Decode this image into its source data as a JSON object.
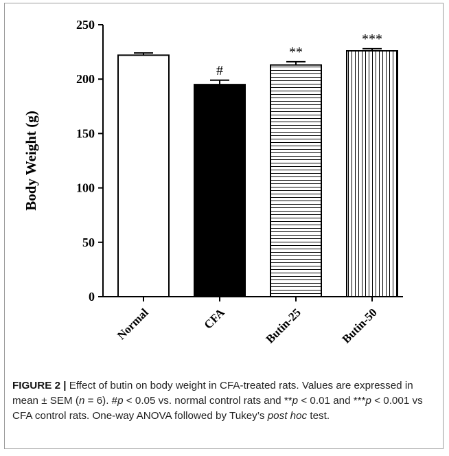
{
  "chart_data": {
    "type": "bar",
    "categories": [
      "Normal",
      "CFA",
      "Butin-25",
      "Butin-50"
    ],
    "values": [
      222,
      195,
      213,
      226
    ],
    "errors": [
      2,
      4,
      3,
      2
    ],
    "significance": [
      "",
      "#",
      "**",
      "***"
    ],
    "patterns": [
      "none",
      "solid",
      "horizontal-lines",
      "vertical-lines"
    ],
    "ylabel": "Body Weight (g)",
    "ylim": [
      0,
      250
    ],
    "yticks": [
      0,
      50,
      100,
      150,
      200,
      250
    ],
    "grid": false
  },
  "caption": {
    "label": "FIGURE 2 |",
    "p1": " Effect of butin on body weight in CFA-treated rats. Values are expressed in mean ± SEM (",
    "n_symbol": "n",
    "p2": " = 6). #",
    "p_symbol": "p",
    "p3": " < 0.05 vs. normal control rats and **",
    "p4": " < 0.01 and ***",
    "p5": " < 0.001 vs CFA control rats. One-way ANOVA followed by Tukey’s ",
    "posthoc": "post hoc",
    "p6": " test."
  },
  "colors": {
    "bar_stroke": "#000000",
    "bar_fill": "#ffffff",
    "bar_solid": "#000000",
    "frame": "#9a9a9a"
  }
}
